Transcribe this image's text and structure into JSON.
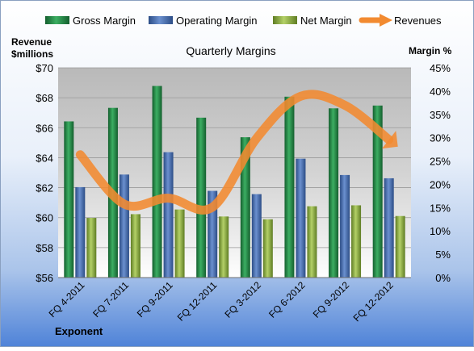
{
  "chart_data": {
    "type": "bar",
    "title": "Quarterly Margins",
    "left_axis_label_line1": "Revenue",
    "left_axis_label_line2": "$millions",
    "right_axis_label": "Margin %",
    "xlabel": "Exponent",
    "categories": [
      "FQ 4-2011",
      "FQ 7-2011",
      "FQ 9-2011",
      "FQ 12-2011",
      "FQ 3-2012",
      "FQ 6-2012",
      "FQ 9-2012",
      "FQ 12-2012"
    ],
    "left_axis": {
      "min": 56,
      "max": 70,
      "step": 2,
      "tick_labels": [
        "$56",
        "$58",
        "$60",
        "$62",
        "$64",
        "$66",
        "$68",
        "$70"
      ]
    },
    "right_axis": {
      "min": 0,
      "max": 45,
      "step": 5,
      "tick_labels": [
        "0%",
        "5%",
        "10%",
        "15%",
        "20%",
        "25%",
        "30%",
        "35%",
        "40%",
        "45%"
      ]
    },
    "grid": true,
    "legend_position": "top",
    "series": [
      {
        "name": "Gross Margin",
        "axis": "right",
        "kind": "bar",
        "color": "#2e8b4e",
        "values": [
          33.5,
          36.4,
          41.1,
          34.3,
          30.1,
          38.8,
          36.3,
          36.9
        ]
      },
      {
        "name": "Operating Margin",
        "axis": "right",
        "kind": "bar",
        "color": "#4a6fb0",
        "values": [
          19.4,
          22.1,
          26.9,
          18.6,
          17.9,
          25.5,
          22.0,
          21.3
        ]
      },
      {
        "name": "Net Margin",
        "axis": "right",
        "kind": "bar",
        "color": "#93b545",
        "values": [
          12.8,
          13.6,
          14.6,
          13.1,
          12.5,
          15.3,
          15.5,
          13.2
        ]
      },
      {
        "name": "Revenues",
        "axis": "left",
        "kind": "line",
        "color": "#f28a30",
        "values": [
          64.2,
          60.9,
          61.3,
          60.7,
          65.3,
          68.1,
          67.5,
          65.2
        ]
      }
    ]
  }
}
